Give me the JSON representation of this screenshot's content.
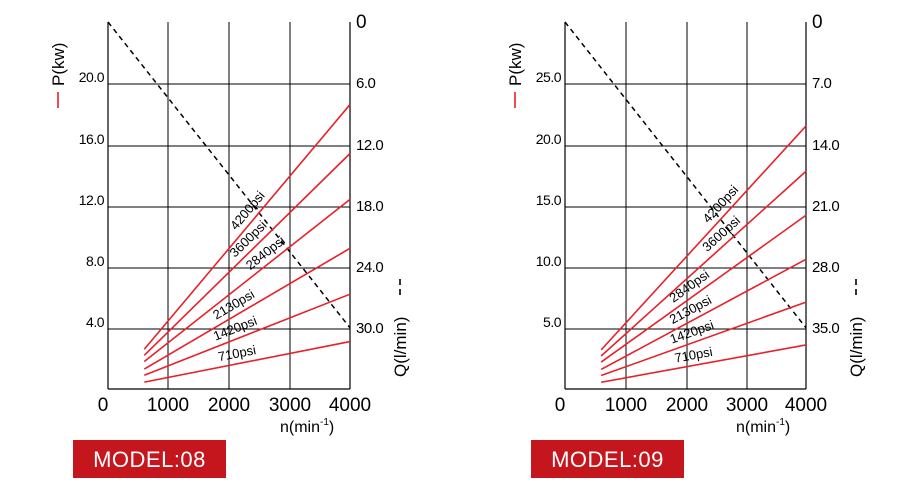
{
  "colors": {
    "curve": "#e8202a",
    "badge_bg": "#c4161c",
    "badge_text": "#ffffff",
    "grid": "#000000",
    "q_line": "#000000",
    "legend_p_dash": "#e8202a"
  },
  "charts": [
    {
      "model_label": "MODEL:08",
      "p_axis_label": "P(kw)",
      "q_axis_label": "Q(l/min)",
      "x_label_main": "n(min",
      "x_label_sup": "-1",
      "x_label_end": ")",
      "left_ticks": [
        "20.0",
        "16.0",
        "12.0",
        "8.0",
        "4.0"
      ],
      "right_ticks": [
        "0",
        "6.0",
        "12.0",
        "18.0",
        "24.0",
        "30.0"
      ],
      "x_ticks": [
        "0",
        "1000",
        "2000",
        "3000",
        "4000"
      ]
    },
    {
      "model_label": "MODEL:09",
      "p_axis_label": "P(kw)",
      "q_axis_label": "Q(l/min)",
      "x_label_main": "n(min",
      "x_label_sup": "-1",
      "x_label_end": ")",
      "left_ticks": [
        "25.0",
        "20.0",
        "15.0",
        "10.0",
        "5.0"
      ],
      "right_ticks": [
        "0",
        "7.0",
        "14.0",
        "21.0",
        "28.0",
        "35.0"
      ],
      "x_ticks": [
        "0",
        "1000",
        "2000",
        "3000",
        "4000"
      ]
    }
  ],
  "chart_data": [
    {
      "type": "line",
      "title": "MODEL:08",
      "xlabel": "n(min-1)",
      "ylabel": "P(kw)",
      "y2label": "Q(l/min)",
      "xlim": [
        0,
        4000
      ],
      "ylim": [
        0,
        24
      ],
      "y2lim": [
        36,
        0
      ],
      "grid": true,
      "series": [
        {
          "name": "4200psi",
          "x": [
            600,
            4000
          ],
          "y": [
            2.6,
            18.6
          ]
        },
        {
          "name": "3600psi",
          "x": [
            600,
            4000
          ],
          "y": [
            2.2,
            15.4
          ]
        },
        {
          "name": "2840psi",
          "x": [
            600,
            4000
          ],
          "y": [
            1.8,
            12.4
          ]
        },
        {
          "name": "2130psi",
          "x": [
            600,
            4000
          ],
          "y": [
            1.3,
            9.2
          ]
        },
        {
          "name": "1420psi",
          "x": [
            600,
            4000
          ],
          "y": [
            0.9,
            6.2
          ]
        },
        {
          "name": "710psi",
          "x": [
            600,
            4000
          ],
          "y": [
            0.45,
            3.1
          ]
        }
      ],
      "flow_line": {
        "x": [
          0,
          4000
        ],
        "y2": [
          0,
          30.0
        ]
      }
    },
    {
      "type": "line",
      "title": "MODEL:09",
      "xlabel": "n(min-1)",
      "ylabel": "P(kw)",
      "y2label": "Q(l/min)",
      "xlim": [
        0,
        4000
      ],
      "ylim": [
        0,
        30
      ],
      "y2lim": [
        42,
        0
      ],
      "grid": true,
      "series": [
        {
          "name": "4200psi",
          "x": [
            600,
            4000
          ],
          "y": [
            3.2,
            21.5
          ]
        },
        {
          "name": "3600psi",
          "x": [
            600,
            4000
          ],
          "y": [
            2.7,
            17.8
          ]
        },
        {
          "name": "2840psi",
          "x": [
            600,
            4000
          ],
          "y": [
            2.2,
            14.2
          ]
        },
        {
          "name": "2130psi",
          "x": [
            600,
            4000
          ],
          "y": [
            1.6,
            10.6
          ]
        },
        {
          "name": "1420psi",
          "x": [
            600,
            4000
          ],
          "y": [
            1.1,
            7.1
          ]
        },
        {
          "name": "710psi",
          "x": [
            600,
            4000
          ],
          "y": [
            0.55,
            3.6
          ]
        }
      ],
      "flow_line": {
        "x": [
          0,
          4000
        ],
        "y2": [
          0,
          35.0
        ]
      }
    }
  ]
}
